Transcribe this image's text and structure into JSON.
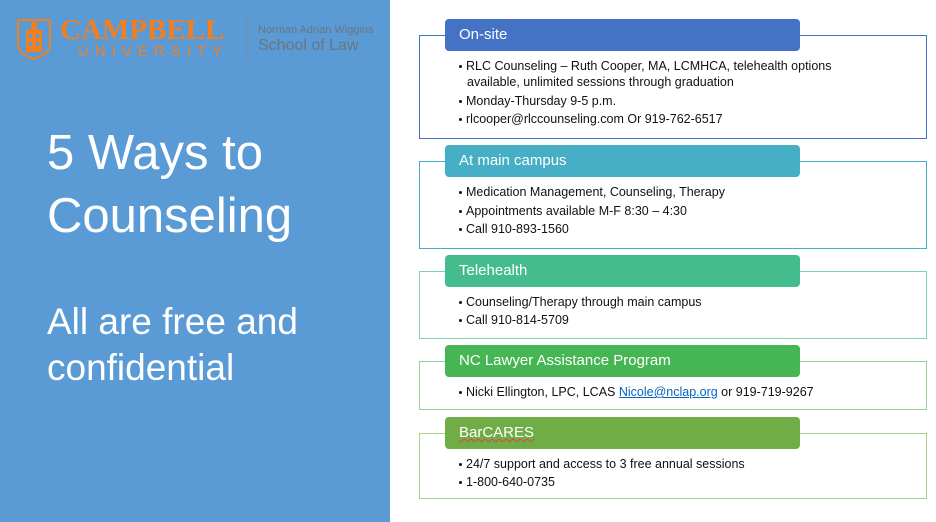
{
  "logo": {
    "name": "CAMPBELL",
    "sub": "UNIVERSITY",
    "school_top": "Norman Adrian Wiggins",
    "school": "School of Law"
  },
  "title_lines": [
    "5 Ways to",
    "Counseling"
  ],
  "subtitle_lines": [
    "All are free and",
    "confidential"
  ],
  "colors": {
    "left_panel": "#5B9BD5",
    "logo_orange": "#F07F22",
    "onsite": "#4472C4",
    "campus": "#46AFC6",
    "telehealth": "#44BC8E",
    "nclap": "#46B553",
    "barcares": "#70AD47"
  },
  "sections": [
    {
      "header": "On-site",
      "bullets": [
        "RLC Counseling – Ruth Cooper, MA, LCMHCA, telehealth options",
        "available, unlimited sessions through graduation",
        "Monday-Thursday 9-5 p.m.",
        "rlcooper@rlccounseling.com Or 919-762-6517"
      ]
    },
    {
      "header": "At main campus",
      "bullets": [
        "Medication Management, Counseling, Therapy",
        "Appointments available M-F 8:30 – 4:30",
        "Call 910-893-1560"
      ]
    },
    {
      "header": "Telehealth",
      "bullets": [
        "Counseling/Therapy through main campus",
        "Call 910-814-5709"
      ]
    },
    {
      "header": "NC Lawyer Assistance Program",
      "bullet_prefix": "Nicki Ellington, LPC, LCAS ",
      "link": "Nicole@nclap.org",
      "bullet_suffix": " or 919-719-9267"
    },
    {
      "header": "BarCARES",
      "bullets": [
        "24/7 support and access to 3 free annual sessions",
        "1-800-640-0735"
      ]
    }
  ]
}
